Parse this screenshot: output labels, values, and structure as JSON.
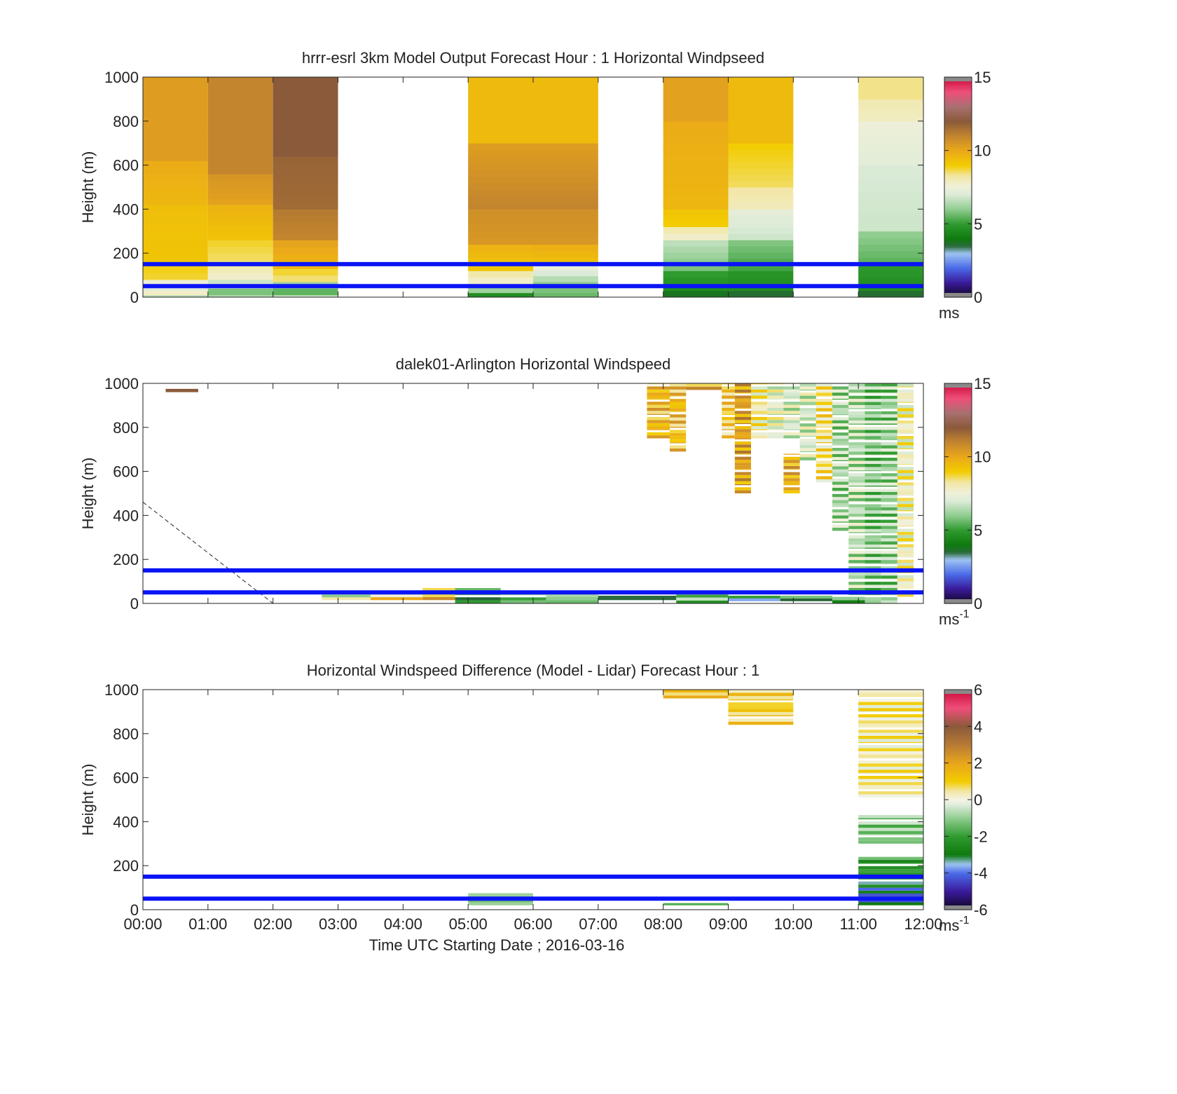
{
  "chart_data": [
    {
      "type": "heatmap",
      "title": "hrrr-esrl 3km Model Output   Forecast Hour : 1 Horizontal Windpseed",
      "ylabel": "Height (m)",
      "xlim": [
        0,
        12
      ],
      "ylim": [
        0,
        1000
      ],
      "yticks": [
        0,
        200,
        400,
        600,
        800,
        1000
      ],
      "colorbar": {
        "ticks": [
          0,
          5,
          10,
          15
        ],
        "range": [
          0,
          15
        ],
        "unit": "ms",
        "unit_sup": "",
        "scale": "speed"
      },
      "reference_lines_m": [
        50,
        150
      ],
      "columns": [
        {
          "hour_start": 0,
          "hour_end": 1,
          "levels": [
            [
              0,
              10,
              6.5
            ],
            [
              10,
              30,
              7.8
            ],
            [
              30,
              50,
              7.2
            ],
            [
              50,
              80,
              7.5
            ],
            [
              80,
              140,
              8.8
            ],
            [
              140,
              420,
              9.2
            ],
            [
              420,
              620,
              9.6
            ],
            [
              620,
              1000,
              10.3
            ]
          ]
        },
        {
          "hour_start": 1,
          "hour_end": 2,
          "levels": [
            [
              0,
              10,
              6.5
            ],
            [
              10,
              40,
              5.8
            ],
            [
              40,
              80,
              6.8
            ],
            [
              80,
              140,
              7.8
            ],
            [
              140,
              260,
              8.5
            ],
            [
              260,
              420,
              9.3
            ],
            [
              420,
              560,
              10.2
            ],
            [
              560,
              1000,
              11.0
            ]
          ]
        },
        {
          "hour_start": 2,
          "hour_end": 3,
          "levels": [
            [
              0,
              10,
              6.8
            ],
            [
              10,
              40,
              5.5
            ],
            [
              40,
              70,
              6.2
            ],
            [
              70,
              130,
              8.5
            ],
            [
              130,
              260,
              9.6
            ],
            [
              260,
              400,
              11.0
            ],
            [
              400,
              640,
              11.6
            ],
            [
              640,
              1000,
              12.0
            ]
          ]
        },
        {
          "hour_start": 5,
          "hour_end": 6,
          "levels": [
            [
              0,
              20,
              4.6
            ],
            [
              20,
              60,
              6.2
            ],
            [
              60,
              120,
              7.8
            ],
            [
              120,
              240,
              9.2
            ],
            [
              240,
              400,
              10.5
            ],
            [
              400,
              700,
              11.0
            ],
            [
              700,
              1000,
              9.5
            ]
          ]
        },
        {
          "hour_start": 6,
          "hour_end": 7,
          "levels": [
            [
              0,
              20,
              5.6
            ],
            [
              20,
              70,
              5.8
            ],
            [
              70,
              150,
              6.5
            ],
            [
              150,
              240,
              9.4
            ],
            [
              240,
              400,
              10.5
            ],
            [
              400,
              700,
              11.0
            ],
            [
              700,
              1000,
              9.5
            ]
          ]
        },
        {
          "hour_start": 8,
          "hour_end": 9,
          "levels": [
            [
              0,
              30,
              3.8
            ],
            [
              30,
              120,
              4.6
            ],
            [
              120,
              260,
              5.8
            ],
            [
              260,
              320,
              7.8
            ],
            [
              320,
              400,
              9.0
            ],
            [
              400,
              800,
              9.6
            ],
            [
              800,
              1000,
              10.2
            ]
          ]
        },
        {
          "hour_start": 9,
          "hour_end": 10,
          "levels": [
            [
              0,
              30,
              3.6
            ],
            [
              30,
              120,
              4.6
            ],
            [
              120,
              260,
              5.2
            ],
            [
              260,
              400,
              6.8
            ],
            [
              400,
              500,
              8.0
            ],
            [
              500,
              700,
              8.6
            ],
            [
              700,
              1000,
              9.5
            ]
          ]
        },
        {
          "hour_start": 11,
          "hour_end": 12,
          "levels": [
            [
              0,
              30,
              3.6
            ],
            [
              30,
              150,
              4.6
            ],
            [
              150,
              300,
              5.5
            ],
            [
              300,
              600,
              6.8
            ],
            [
              600,
              800,
              7.2
            ],
            [
              800,
              900,
              7.9
            ],
            [
              900,
              1000,
              8.4
            ]
          ]
        }
      ]
    },
    {
      "type": "heatmap",
      "title": "dalek01-Arlington  Horizontal Windspeed",
      "ylabel": "Height (m)",
      "xlim": [
        0,
        12
      ],
      "ylim": [
        0,
        1000
      ],
      "yticks": [
        0,
        200,
        400,
        600,
        800,
        1000
      ],
      "colorbar": {
        "ticks": [
          0,
          5,
          10,
          15
        ],
        "range": [
          0,
          15
        ],
        "unit": "ms",
        "unit_sup": "-1",
        "scale": "speed"
      },
      "reference_lines_m": [
        50,
        150
      ],
      "overshoot_line": {
        "from": [
          0,
          460
        ],
        "to": [
          2,
          0
        ]
      },
      "cells": [
        [
          0.35,
          0.85,
          960,
          975,
          11.5
        ],
        [
          7.75,
          8.1,
          750,
          1000,
          9.6
        ],
        [
          8.1,
          8.35,
          690,
          1000,
          9.4
        ],
        [
          8.35,
          8.9,
          970,
          1000,
          9.8
        ],
        [
          8.9,
          9.1,
          750,
          1000,
          9.0
        ],
        [
          9.1,
          9.35,
          500,
          1000,
          10.2
        ],
        [
          9.35,
          9.6,
          750,
          1000,
          8.0
        ],
        [
          9.6,
          9.85,
          750,
          1000,
          7.4
        ],
        [
          9.85,
          10.1,
          500,
          680,
          9.8
        ],
        [
          9.85,
          10.1,
          750,
          1000,
          7.0
        ],
        [
          10.1,
          10.35,
          650,
          1000,
          7.0
        ],
        [
          10.35,
          10.6,
          550,
          1000,
          8.4
        ],
        [
          10.6,
          10.85,
          330,
          1000,
          6.4
        ],
        [
          10.85,
          11.1,
          0,
          1000,
          6.6
        ],
        [
          11.1,
          11.35,
          0,
          1000,
          6.0
        ],
        [
          11.35,
          11.6,
          0,
          1000,
          6.2
        ],
        [
          11.6,
          11.85,
          30,
          1000,
          7.8
        ],
        [
          2.75,
          3.5,
          15,
          40,
          7.0
        ],
        [
          3.5,
          4.3,
          15,
          55,
          8.8
        ],
        [
          4.3,
          4.8,
          15,
          70,
          9.8
        ],
        [
          4.8,
          5.5,
          0,
          70,
          4.4
        ],
        [
          5.5,
          6.2,
          0,
          55,
          5.6
        ],
        [
          6.2,
          7.0,
          0,
          45,
          6.0
        ],
        [
          7.0,
          8.2,
          15,
          35,
          4.3
        ],
        [
          8.2,
          9.0,
          0,
          40,
          5.8
        ],
        [
          9.0,
          9.8,
          10,
          35,
          3.9
        ],
        [
          9.8,
          10.6,
          10,
          35,
          4.6
        ],
        [
          10.6,
          11.1,
          0,
          30,
          5.0
        ]
      ]
    },
    {
      "type": "heatmap",
      "title": "Horizontal Windspeed Difference (Model - Lidar) Forecast Hour : 1",
      "ylabel": "Height (m)",
      "xlabel": "Time UTC  Starting Date ; 2016-03-16",
      "xlim": [
        0,
        12
      ],
      "ylim": [
        0,
        1000
      ],
      "yticks": [
        0,
        200,
        400,
        600,
        800,
        1000
      ],
      "xticks": [
        "00:00",
        "01:00",
        "02:00",
        "03:00",
        "04:00",
        "05:00",
        "06:00",
        "07:00",
        "08:00",
        "09:00",
        "10:00",
        "11:00",
        "12:00"
      ],
      "colorbar": {
        "ticks": [
          -6,
          -4,
          -2,
          0,
          2,
          4,
          6
        ],
        "range": [
          -6,
          6
        ],
        "unit": "ms",
        "unit_sup": "-1",
        "scale": "diff"
      },
      "reference_lines_m": [
        50,
        150
      ],
      "cells": [
        [
          5.0,
          6.0,
          20,
          75,
          -1.2
        ],
        [
          8.0,
          9.0,
          20,
          30,
          -2.2
        ],
        [
          8.0,
          9.0,
          960,
          1000,
          1.2
        ],
        [
          9.0,
          10.0,
          840,
          1000,
          1.0
        ],
        [
          11.0,
          12.0,
          20,
          100,
          -3.6
        ],
        [
          11.0,
          12.0,
          100,
          170,
          -2.8
        ],
        [
          11.0,
          12.0,
          170,
          240,
          -2.0
        ],
        [
          11.0,
          12.0,
          300,
          430,
          -1.1
        ],
        [
          11.0,
          12.0,
          510,
          1000,
          0.4
        ]
      ]
    }
  ]
}
